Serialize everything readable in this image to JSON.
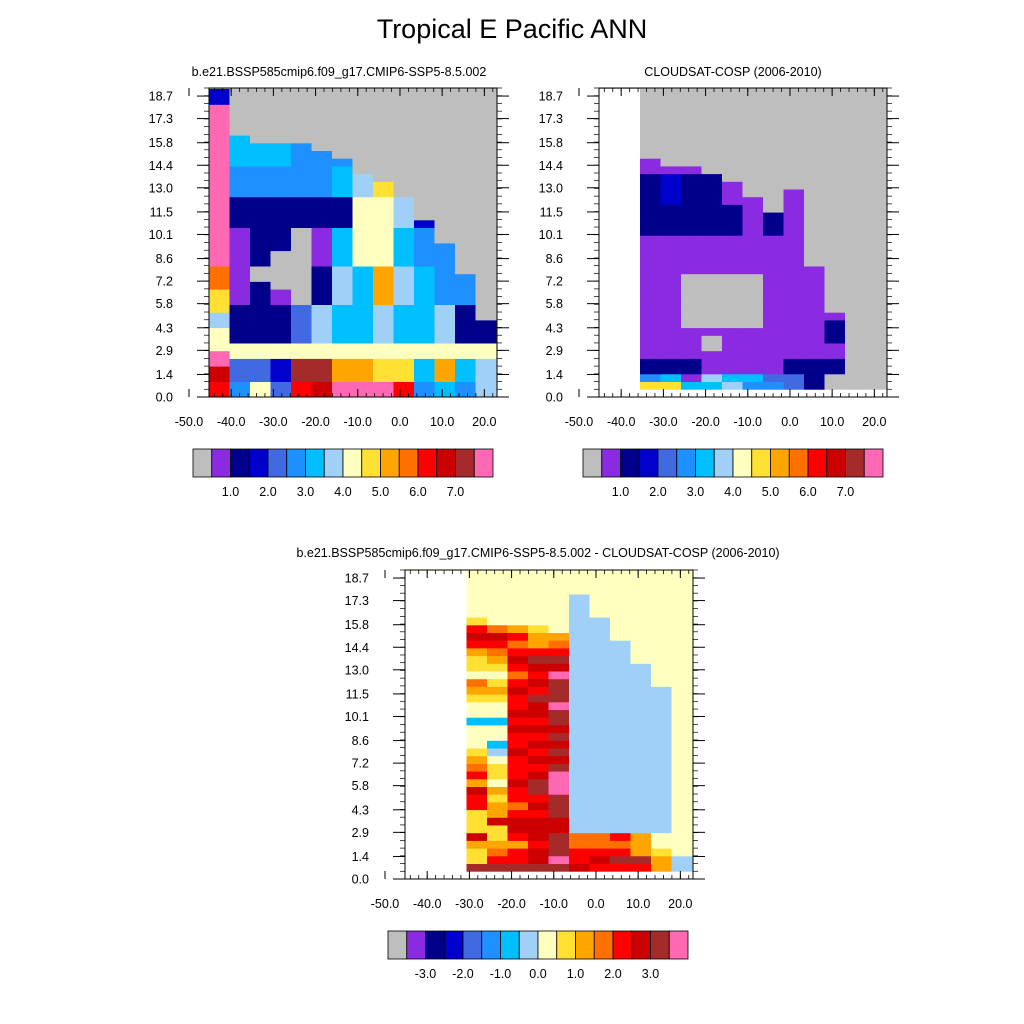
{
  "title": "Tropical E Pacific ANN",
  "chart_data": [
    {
      "type": "heatmap",
      "title": "b.e21.BSSP585cmip6.f09_g17.CMIP6-SSP5-8.5.002",
      "x_ticks": [
        "-50.0",
        "-40.0",
        "-30.0",
        "-20.0",
        "-10.0",
        "0.0",
        "10.0",
        "20.0"
      ],
      "y_ticks": [
        "0.0",
        "1.4",
        "2.9",
        "4.3",
        "5.8",
        "7.2",
        "8.6",
        "10.1",
        "11.5",
        "13.0",
        "14.4",
        "15.8",
        "17.3",
        "18.7"
      ],
      "xlim": [
        -50,
        23
      ],
      "ylim": [
        0,
        19.2
      ],
      "colorbar_labels": [
        "1.0",
        "2.0",
        "3.0",
        "4.0",
        "5.0",
        "6.0",
        "7.0"
      ],
      "color_levels": [
        "#bebebe",
        "#8a2be2",
        "#00008b",
        "#0000cd",
        "#4169e1",
        "#1e90ff",
        "#00bfff",
        "#a0d0f8",
        "#ffffc0",
        "#ffe033",
        "#ffa500",
        "#ff7000",
        "#ff0000",
        "#cd0000",
        "#a52a2a",
        "#ff69b4"
      ],
      "missing_color": "#bebebe"
    },
    {
      "type": "heatmap",
      "title": "CLOUDSAT-COSP (2006-2010)",
      "x_ticks": [
        "-50.0",
        "-40.0",
        "-30.0",
        "-20.0",
        "-10.0",
        "0.0",
        "10.0",
        "20.0"
      ],
      "y_ticks": [
        "0.0",
        "1.4",
        "2.9",
        "4.3",
        "5.8",
        "7.2",
        "8.6",
        "10.1",
        "11.5",
        "13.0",
        "14.4",
        "15.8",
        "17.3",
        "18.7"
      ],
      "xlim": [
        -50,
        23
      ],
      "ylim": [
        0,
        19.2
      ],
      "colorbar_labels": [
        "1.0",
        "2.0",
        "3.0",
        "4.0",
        "5.0",
        "6.0",
        "7.0"
      ],
      "color_levels": [
        "#bebebe",
        "#8a2be2",
        "#00008b",
        "#0000cd",
        "#4169e1",
        "#1e90ff",
        "#00bfff",
        "#a0d0f8",
        "#ffffc0",
        "#ffe033",
        "#ffa500",
        "#ff7000",
        "#ff0000",
        "#cd0000",
        "#a52a2a",
        "#ff69b4"
      ],
      "missing_color": "#bebebe"
    },
    {
      "type": "heatmap",
      "title": "b.e21.BSSP585cmip6.f09_g17.CMIP6-SSP5-8.5.002 - CLOUDSAT-COSP (2006-2010)",
      "x_ticks": [
        "-50.0",
        "-40.0",
        "-30.0",
        "-20.0",
        "-10.0",
        "0.0",
        "10.0",
        "20.0"
      ],
      "y_ticks": [
        "0.0",
        "1.4",
        "2.9",
        "4.3",
        "5.8",
        "7.2",
        "8.6",
        "10.1",
        "11.5",
        "13.0",
        "14.4",
        "15.8",
        "17.3",
        "18.7"
      ],
      "xlim": [
        -50,
        23
      ],
      "ylim": [
        0,
        19.2
      ],
      "colorbar_labels": [
        "-3.0",
        "-2.0",
        "-1.0",
        "0.0",
        "1.0",
        "2.0",
        "3.0"
      ],
      "color_levels": [
        "#bebebe",
        "#8a2be2",
        "#00008b",
        "#0000cd",
        "#4169e1",
        "#1e90ff",
        "#00bfff",
        "#a0d0f8",
        "#ffffc0",
        "#ffe033",
        "#ffa500",
        "#ff7000",
        "#ff0000",
        "#cd0000",
        "#a52a2a",
        "#ff69b4"
      ],
      "missing_color": "#ffffc0"
    }
  ]
}
